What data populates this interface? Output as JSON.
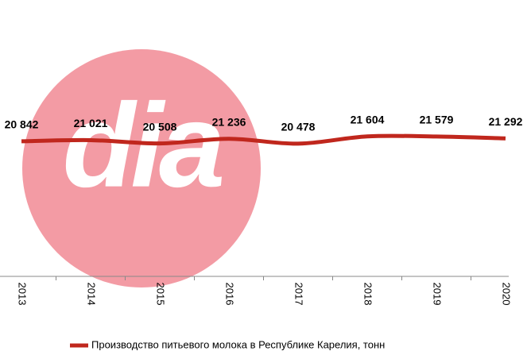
{
  "chart_data": {
    "type": "line",
    "watermark": "dia",
    "categories": [
      "2013",
      "2014",
      "2015",
      "2016",
      "2017",
      "2018",
      "2019",
      "2020"
    ],
    "series": [
      {
        "name": "Производство питьевого молока в Республике Карелия, тонн",
        "color": "#c0271d",
        "values": [
          20842,
          21021,
          20508,
          21236,
          20478,
          21604,
          21579,
          21292
        ],
        "value_labels": [
          "20 842",
          "21 021",
          "20 508",
          "21 236",
          "20 478",
          "21 604",
          "21 579",
          "21 292"
        ]
      }
    ],
    "ylim": [
      0,
      25000
    ]
  }
}
